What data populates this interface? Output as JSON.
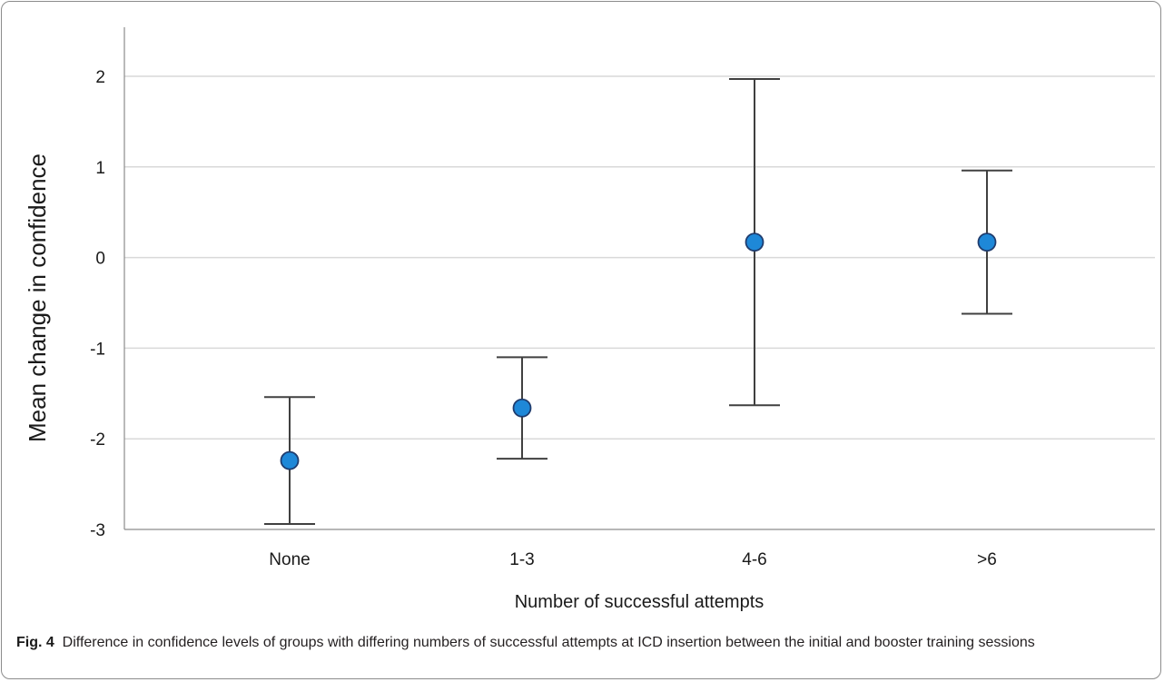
{
  "chart_data": {
    "type": "scatter",
    "subtype": "mean-with-error-bars",
    "xlabel": "Number of successful attempts",
    "ylabel": "Mean change in confidence",
    "categories": [
      "None",
      "1-3",
      "4-6",
      ">6"
    ],
    "means": [
      -2.24,
      -1.66,
      0.17,
      0.17
    ],
    "lower": [
      -2.94,
      -2.22,
      -1.63,
      -0.62
    ],
    "upper": [
      -1.54,
      -1.1,
      1.97,
      0.96
    ],
    "ylim": [
      -3,
      2.5
    ],
    "yticks": [
      -3,
      -2,
      -1,
      0,
      1,
      2
    ],
    "grid": true,
    "marker_color": "#1e88d8",
    "marker_edge_color": "#1f3c6e",
    "errorbar_color": "#404040",
    "gridline_color": "#d9d9d9"
  },
  "caption": {
    "label": "Fig. 4",
    "text": "Difference in confidence levels of groups with differing numbers of successful attempts at ICD insertion between the initial and booster training sessions"
  }
}
